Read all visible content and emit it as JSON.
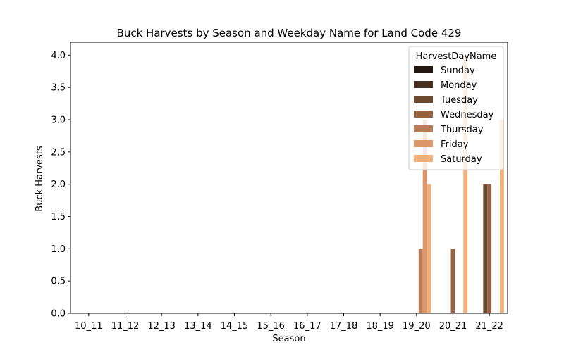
{
  "chart_data": {
    "type": "bar",
    "title": "Buck Harvests by Season and Weekday Name for Land Code 429",
    "xlabel": "Season",
    "ylabel": "Buck Harvests",
    "ylim": [
      0,
      4.2
    ],
    "yticks": [
      "0.0",
      "0.5",
      "1.0",
      "1.5",
      "2.0",
      "2.5",
      "3.0",
      "3.5",
      "4.0"
    ],
    "categories": [
      "10_11",
      "11_12",
      "12_13",
      "13_14",
      "14_15",
      "15_16",
      "16_17",
      "17_18",
      "18_19",
      "19_20",
      "20_21",
      "21_22"
    ],
    "legend_title": "HarvestDayName",
    "legend_position": "top-right",
    "grid": false,
    "series": [
      {
        "name": "Sunday",
        "color": "#22170f",
        "values": [
          0,
          0,
          0,
          0,
          0,
          0,
          0,
          0,
          0,
          0,
          0,
          0
        ]
      },
      {
        "name": "Monday",
        "color": "#46301f",
        "values": [
          0,
          0,
          0,
          0,
          0,
          0,
          0,
          0,
          0,
          0,
          0,
          0
        ]
      },
      {
        "name": "Tuesday",
        "color": "#6b4a30",
        "values": [
          0,
          0,
          0,
          0,
          0,
          0,
          0,
          0,
          0,
          0,
          0,
          2
        ]
      },
      {
        "name": "Wednesday",
        "color": "#926445",
        "values": [
          0,
          0,
          0,
          0,
          0,
          0,
          0,
          0,
          0,
          0,
          1,
          2
        ]
      },
      {
        "name": "Thursday",
        "color": "#b87b57",
        "values": [
          0,
          0,
          0,
          0,
          0,
          0,
          0,
          0,
          0,
          1,
          0,
          0
        ]
      },
      {
        "name": "Friday",
        "color": "#dc9669",
        "values": [
          0,
          0,
          0,
          0,
          0,
          0,
          0,
          0,
          0,
          3,
          0,
          0
        ]
      },
      {
        "name": "Saturday",
        "color": "#f0b07c",
        "values": [
          0,
          0,
          0,
          0,
          0,
          0,
          0,
          0,
          0,
          2,
          4,
          3
        ]
      }
    ]
  }
}
